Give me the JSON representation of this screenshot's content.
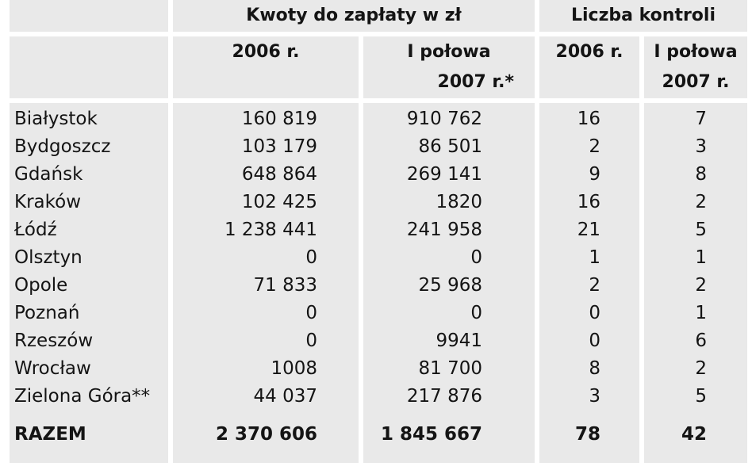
{
  "header": {
    "group_amounts": "Kwoty do zapłaty w zł",
    "group_controls": "Liczba kontroli",
    "col_2006": "2006 r.",
    "col_h1_line1": "I połowa",
    "col_h1_amount_line2": "2007 r.*",
    "col_h1_count_line2": "2007 r."
  },
  "rows": [
    {
      "city": "Białystok",
      "a2006": "160 819",
      "a2007": "910 762",
      "c2006": "16",
      "c2007": "7"
    },
    {
      "city": "Bydgoszcz",
      "a2006": "103 179",
      "a2007": "86 501",
      "c2006": "2",
      "c2007": "3"
    },
    {
      "city": "Gdańsk",
      "a2006": "648 864",
      "a2007": "269 141",
      "c2006": "9",
      "c2007": "8"
    },
    {
      "city": "Kraków",
      "a2006": "102 425",
      "a2007": "1820",
      "c2006": "16",
      "c2007": "2"
    },
    {
      "city": "Łódź",
      "a2006": "1 238 441",
      "a2007": "241 958",
      "c2006": "21",
      "c2007": "5"
    },
    {
      "city": "Olsztyn",
      "a2006": "0",
      "a2007": "0",
      "c2006": "1",
      "c2007": "1"
    },
    {
      "city": "Opole",
      "a2006": "71 833",
      "a2007": "25 968",
      "c2006": "2",
      "c2007": "2"
    },
    {
      "city": "Poznań",
      "a2006": "0",
      "a2007": "0",
      "c2006": "0",
      "c2007": "1"
    },
    {
      "city": "Rzeszów",
      "a2006": "0",
      "a2007": "9941",
      "c2006": "0",
      "c2007": "6"
    },
    {
      "city": "Wrocław",
      "a2006": "1008",
      "a2007": "81 700",
      "c2006": "8",
      "c2007": "2"
    },
    {
      "city": "Zielona Góra**",
      "a2006": "44 037",
      "a2007": "217 876",
      "c2006": "3",
      "c2007": "5"
    }
  ],
  "total": {
    "city": "RAZEM",
    "a2006": "2 370 606",
    "a2007": "1 845 667",
    "c2006": "78",
    "c2007": "42"
  }
}
